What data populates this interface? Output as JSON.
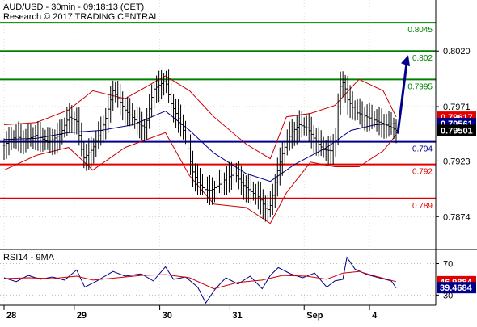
{
  "header": {
    "line1": "AUD/USD - 30min - 09:18:13 (CET)",
    "line2": "Research © 2017 TRADING CENTRAL"
  },
  "chart_data": [
    {
      "type": "candlestick",
      "title": "AUD/USD - 30min - 09:18:13 (CET)",
      "ylim": [
        0.7845,
        0.8065
      ],
      "yticks": [
        0.7874,
        0.7923,
        0.7971,
        0.802
      ],
      "ytick_labels": [
        "0.7874",
        "0.7923",
        "0.7971",
        "0.8020"
      ],
      "x_labels": [
        "28",
        "29",
        "30",
        "31",
        "Sep",
        "4"
      ],
      "x_label_pos": [
        0,
        87,
        193,
        280,
        372,
        453
      ],
      "levels": [
        {
          "value": 0.8045,
          "label": "0.8045",
          "color": "#008000"
        },
        {
          "value": 0.802,
          "label": "0.802",
          "color": "#008000"
        },
        {
          "value": 0.7995,
          "label": "0.7995",
          "color": "#008000"
        },
        {
          "value": 0.794,
          "label": "0.794",
          "color": "#00008b"
        },
        {
          "value": 0.792,
          "label": "0.792",
          "color": "#e00000"
        },
        {
          "value": 0.789,
          "label": "0.789",
          "color": "#e00000"
        }
      ],
      "price_badges": [
        {
          "value": 0.79617,
          "label": "0.79617",
          "color": "#e00000"
        },
        {
          "value": 0.79561,
          "label": "0.79561",
          "color": "#00008b"
        },
        {
          "value": 0.79501,
          "label": "0.79501",
          "color": "#000000"
        }
      ],
      "arrow_target": 0.802,
      "series": [
        {
          "name": "price",
          "t": [
            0,
            15,
            25,
            40,
            55,
            70,
            80,
            90,
            98,
            110,
            125,
            135,
            150,
            165,
            175,
            185,
            200,
            206,
            215,
            225,
            233,
            240,
            248,
            256,
            266,
            276,
            286,
            296,
            306,
            316,
            326,
            331,
            338,
            346,
            356,
            366,
            376,
            386,
            396,
            406,
            411,
            416,
            421,
            426,
            436,
            446,
            456,
            466,
            476,
            486
          ],
          "values": [
            0.7937,
            0.7945,
            0.7941,
            0.7946,
            0.7939,
            0.7947,
            0.7962,
            0.7958,
            0.7925,
            0.7934,
            0.7958,
            0.7985,
            0.7968,
            0.7957,
            0.7952,
            0.7986,
            0.7994,
            0.7975,
            0.7962,
            0.7945,
            0.7915,
            0.7904,
            0.7898,
            0.7897,
            0.7902,
            0.7908,
            0.7912,
            0.7902,
            0.7896,
            0.7891,
            0.7879,
            0.7885,
            0.7912,
            0.7932,
            0.7948,
            0.7955,
            0.7952,
            0.7941,
            0.7933,
            0.7932,
            0.7945,
            0.7988,
            0.7993,
            0.7977,
            0.7966,
            0.7963,
            0.796,
            0.7957,
            0.7954,
            0.795
          ]
        },
        {
          "name": "",
          "color": "#00008b",
          "t": [
            0,
            40,
            80,
            120,
            160,
            200,
            230,
            260,
            300,
            330,
            360,
            400,
            430,
            460,
            486
          ],
          "values": [
            0.7942,
            0.7943,
            0.7948,
            0.795,
            0.7955,
            0.7967,
            0.795,
            0.793,
            0.7912,
            0.7905,
            0.792,
            0.7935,
            0.795,
            0.7955,
            0.7956
          ]
        },
        {
          "name": "",
          "color": "#cc0000",
          "t": [
            0,
            40,
            80,
            110,
            150,
            200,
            230,
            260,
            300,
            330,
            350,
            380,
            410,
            440,
            470,
            486
          ],
          "values": [
            0.7955,
            0.7957,
            0.7968,
            0.7985,
            0.7978,
            0.7998,
            0.7985,
            0.7962,
            0.7938,
            0.7925,
            0.7962,
            0.7965,
            0.7972,
            0.7995,
            0.7985,
            0.7962
          ]
        },
        {
          "name": "",
          "color": "#cc0000",
          "t": [
            0,
            40,
            80,
            110,
            150,
            200,
            230,
            260,
            300,
            330,
            350,
            380,
            410,
            440,
            470,
            486
          ],
          "values": [
            0.7915,
            0.7928,
            0.7935,
            0.7915,
            0.7935,
            0.7948,
            0.791,
            0.7885,
            0.7882,
            0.7868,
            0.7895,
            0.7922,
            0.7918,
            0.7918,
            0.7932,
            0.7946
          ]
        }
      ]
    },
    {
      "type": "line",
      "title": "RSI14 - 9MA",
      "ylim": [
        17,
        88
      ],
      "yticks": [
        70,
        30
      ],
      "ytick_labels": [
        "70",
        "30"
      ],
      "badges": [
        {
          "value": 46.9884,
          "label": "46.9884",
          "color": "#e00000"
        },
        {
          "value": 39.4684,
          "label": "39.4684",
          "color": "#00008b"
        }
      ],
      "series": [
        {
          "name": "RSI14",
          "color": "#00008b",
          "t": [
            0,
            15,
            30,
            45,
            60,
            75,
            90,
            100,
            115,
            135,
            150,
            170,
            185,
            200,
            210,
            225,
            240,
            250,
            262,
            275,
            290,
            305,
            320,
            330,
            340,
            355,
            370,
            385,
            400,
            410,
            420,
            425,
            435,
            450,
            465,
            480,
            486
          ],
          "values": [
            52,
            47,
            55,
            50,
            53,
            49,
            62,
            40,
            48,
            60,
            54,
            57,
            48,
            66,
            50,
            53,
            40,
            20,
            38,
            52,
            44,
            54,
            38,
            55,
            65,
            57,
            52,
            58,
            40,
            48,
            50,
            78,
            63,
            56,
            52,
            48,
            39
          ]
        },
        {
          "name": "9MA",
          "color": "#cc0000",
          "t": [
            0,
            30,
            60,
            90,
            110,
            140,
            170,
            200,
            230,
            260,
            290,
            320,
            345,
            375,
            400,
            420,
            440,
            460,
            486
          ],
          "values": [
            51,
            52,
            51,
            54,
            49,
            52,
            55,
            56,
            52,
            38,
            46,
            49,
            55,
            54,
            50,
            58,
            60,
            54,
            47
          ]
        }
      ]
    }
  ]
}
